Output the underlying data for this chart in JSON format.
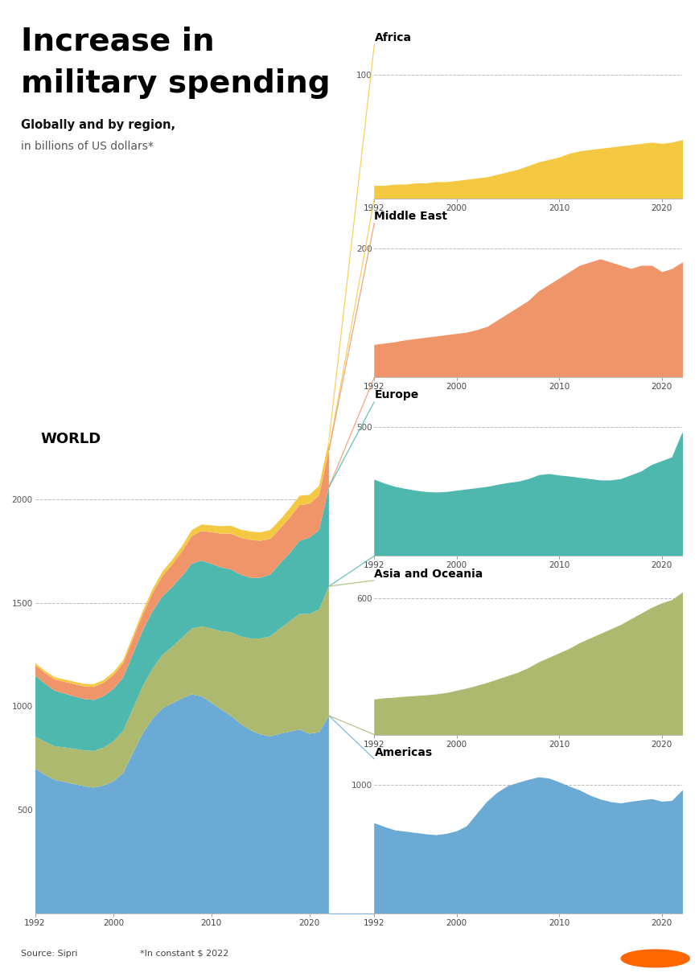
{
  "years": [
    1992,
    1993,
    1994,
    1995,
    1996,
    1997,
    1998,
    1999,
    2000,
    2001,
    2002,
    2003,
    2004,
    2005,
    2006,
    2007,
    2008,
    2009,
    2010,
    2011,
    2012,
    2013,
    2014,
    2015,
    2016,
    2017,
    2018,
    2019,
    2020,
    2021,
    2022
  ],
  "americas": [
    700,
    670,
    645,
    635,
    625,
    615,
    608,
    618,
    638,
    678,
    775,
    870,
    940,
    990,
    1015,
    1038,
    1058,
    1048,
    1018,
    985,
    955,
    915,
    885,
    865,
    855,
    868,
    878,
    888,
    868,
    875,
    955
  ],
  "asia_oceania": [
    155,
    160,
    163,
    167,
    170,
    173,
    177,
    183,
    193,
    203,
    215,
    228,
    243,
    258,
    273,
    293,
    318,
    338,
    358,
    378,
    403,
    423,
    443,
    463,
    483,
    508,
    533,
    558,
    578,
    593,
    625
  ],
  "europe": [
    295,
    280,
    268,
    260,
    253,
    248,
    246,
    248,
    253,
    258,
    263,
    268,
    276,
    283,
    288,
    298,
    313,
    318,
    312,
    308,
    303,
    298,
    293,
    293,
    298,
    313,
    328,
    353,
    368,
    383,
    478
  ],
  "middle_east": [
    50,
    52,
    54,
    57,
    59,
    61,
    63,
    65,
    67,
    69,
    73,
    78,
    88,
    98,
    108,
    118,
    133,
    143,
    153,
    163,
    173,
    178,
    183,
    178,
    173,
    168,
    173,
    173,
    163,
    168,
    178
  ],
  "africa": [
    10,
    10,
    11,
    11,
    12,
    12,
    13,
    13,
    14,
    15,
    16,
    17,
    19,
    21,
    23,
    26,
    29,
    31,
    33,
    36,
    38,
    39,
    40,
    41,
    42,
    43,
    44,
    45,
    44,
    45,
    47
  ],
  "color_americas": "#6aaad4",
  "color_asia": "#adb96e",
  "color_europe": "#4eb8ae",
  "color_middle_east": "#f0956a",
  "color_africa": "#f5c842",
  "background": "#ffffff",
  "title_line1": "Increase in",
  "title_line2": "military spending",
  "subtitle_bold": "Globally and by region,",
  "subtitle_normal": "in billions of US dollars*",
  "world_label": "WORLD",
  "source_text": "Source: Sipri",
  "note_text": "*In constant $ 2022"
}
